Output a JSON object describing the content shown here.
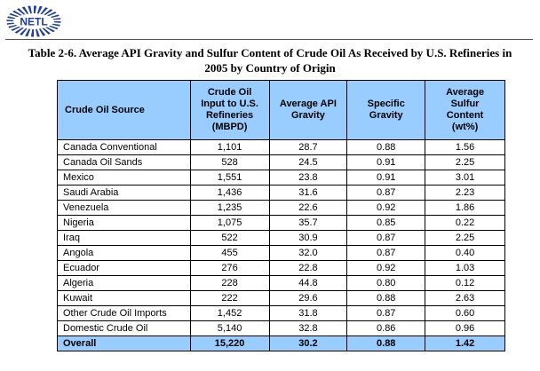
{
  "logo": {
    "text": "NETL"
  },
  "caption": {
    "line1": "Table 2-6.  Average API Gravity and Sulfur Content of Crude Oil As Received by U.S. Refineries in",
    "line2": "2005 by Country of Origin"
  },
  "table": {
    "headers": [
      [
        "Crude Oil Source"
      ],
      [
        "Crude Oil",
        "Input to U.S.",
        "Refineries",
        "(MBPD)"
      ],
      [
        "Average API",
        "Gravity"
      ],
      [
        "Specific",
        "Gravity"
      ],
      [
        "Average",
        "Sulfur",
        "Content",
        "(wt%)"
      ]
    ],
    "rows": [
      [
        "Canada Conventional",
        "1,101",
        "28.7",
        "0.88",
        "1.56"
      ],
      [
        "Canada Oil Sands",
        "528",
        "24.5",
        "0.91",
        "2.25"
      ],
      [
        "Mexico",
        "1,551",
        "23.8",
        "0.91",
        "3.01"
      ],
      [
        "Saudi Arabia",
        "1,436",
        "31.6",
        "0.87",
        "2.23"
      ],
      [
        "Venezuela",
        "1,235",
        "22.6",
        "0.92",
        "1.86"
      ],
      [
        "Nigeria",
        "1,075",
        "35.7",
        "0.85",
        "0.22"
      ],
      [
        "Iraq",
        "522",
        "30.9",
        "0.87",
        "2.25"
      ],
      [
        "Angola",
        "455",
        "32.0",
        "0.87",
        "0.40"
      ],
      [
        "Ecuador",
        "276",
        "22.8",
        "0.92",
        "1.03"
      ],
      [
        "Algeria",
        "228",
        "44.8",
        "0.80",
        "0.12"
      ],
      [
        "Kuwait",
        "222",
        "29.6",
        "0.88",
        "2.63"
      ],
      [
        "Other Crude Oil Imports",
        "1,452",
        "31.8",
        "0.87",
        "0.60"
      ],
      [
        "Domestic Crude Oil",
        "5,140",
        "32.8",
        "0.86",
        "0.96"
      ]
    ],
    "total": [
      "Overall",
      "15,220",
      "30.2",
      "0.88",
      "1.42"
    ]
  },
  "colors": {
    "header_fill": "#99ccff",
    "logo_blue": "#1f3f99"
  }
}
